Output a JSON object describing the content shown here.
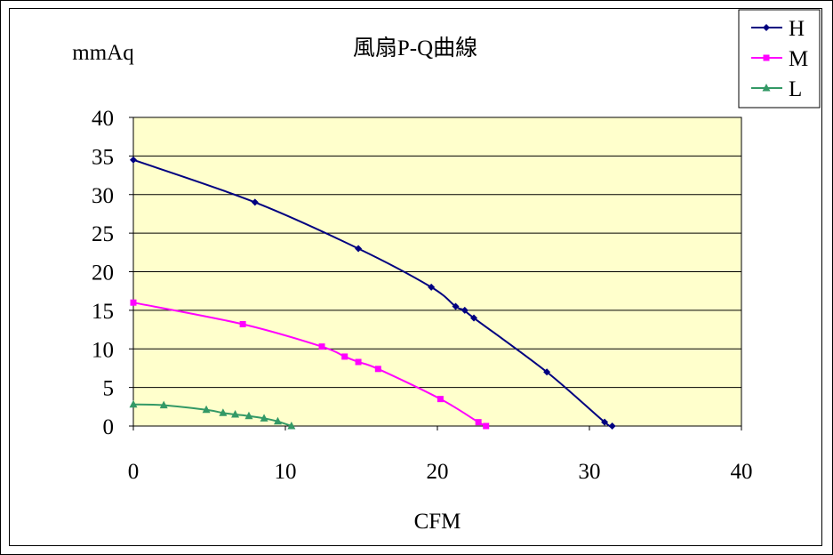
{
  "chart_data": {
    "type": "line",
    "title": "風扇P-Q曲線",
    "xlabel": "CFM",
    "ylabel": "mmAq",
    "xlim": [
      0,
      40
    ],
    "ylim": [
      0,
      40
    ],
    "xticks": [
      "0",
      "10",
      "20",
      "30",
      "40"
    ],
    "yticks": [
      "0",
      "5",
      "10",
      "15",
      "20",
      "25",
      "30",
      "35",
      "40"
    ],
    "grid": "horizontal",
    "plot_background": "#FFFFCC",
    "legend_position": "top-right",
    "series": [
      {
        "name": "H",
        "color": "#000080",
        "marker": "diamond",
        "points": [
          [
            0,
            34.5
          ],
          [
            8,
            29
          ],
          [
            14.8,
            23
          ],
          [
            19.6,
            18
          ],
          [
            21.2,
            15.5
          ],
          [
            21.8,
            15
          ],
          [
            22.4,
            14
          ],
          [
            27.2,
            7
          ],
          [
            31,
            0.5
          ],
          [
            31.5,
            0
          ]
        ]
      },
      {
        "name": "M",
        "color": "#FF00FF",
        "marker": "square",
        "points": [
          [
            0,
            16
          ],
          [
            7.2,
            13.2
          ],
          [
            12.4,
            10.3
          ],
          [
            13.9,
            9
          ],
          [
            14.8,
            8.3
          ],
          [
            16.1,
            7.4
          ],
          [
            20.2,
            3.5
          ],
          [
            22.7,
            0.5
          ],
          [
            23.2,
            0
          ]
        ]
      },
      {
        "name": "L",
        "color": "#339966",
        "marker": "triangle",
        "points": [
          [
            0,
            2.8
          ],
          [
            2,
            2.7
          ],
          [
            4.8,
            2.1
          ],
          [
            5.9,
            1.7
          ],
          [
            6.7,
            1.5
          ],
          [
            7.6,
            1.3
          ],
          [
            8.6,
            1
          ],
          [
            9.5,
            0.6
          ],
          [
            10.4,
            0
          ]
        ]
      }
    ]
  }
}
